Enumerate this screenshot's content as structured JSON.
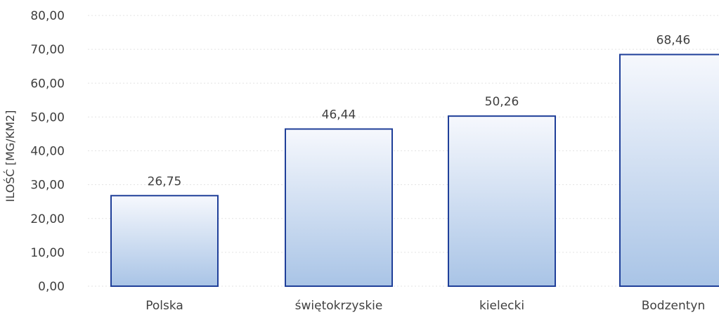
{
  "chart_data": {
    "type": "bar",
    "title": "",
    "xlabel": "",
    "ylabel": "ILOŚĆ [MG/KM2]",
    "categories": [
      "Polska",
      "świętokrzyskie",
      "kielecki",
      "Bodzentyn"
    ],
    "values": [
      26.75,
      46.44,
      50.26,
      68.46
    ],
    "value_labels": [
      "26,75",
      "46,44",
      "50,26",
      "68,46"
    ],
    "ylim": [
      0,
      80
    ],
    "yticks": [
      0,
      10,
      20,
      30,
      40,
      50,
      60,
      70,
      80
    ],
    "ytick_labels": [
      "0,00",
      "10,00",
      "20,00",
      "30,00",
      "40,00",
      "50,00",
      "60,00",
      "70,00",
      "80,00"
    ],
    "grid": true,
    "legend": "none",
    "colors": {
      "bar_stroke": "#1f3f99",
      "bar_fill_top": "#f6f8fd",
      "bar_fill_bottom": "#a9c4e6",
      "grid": "#e3e3e3",
      "text": "#404040"
    }
  }
}
